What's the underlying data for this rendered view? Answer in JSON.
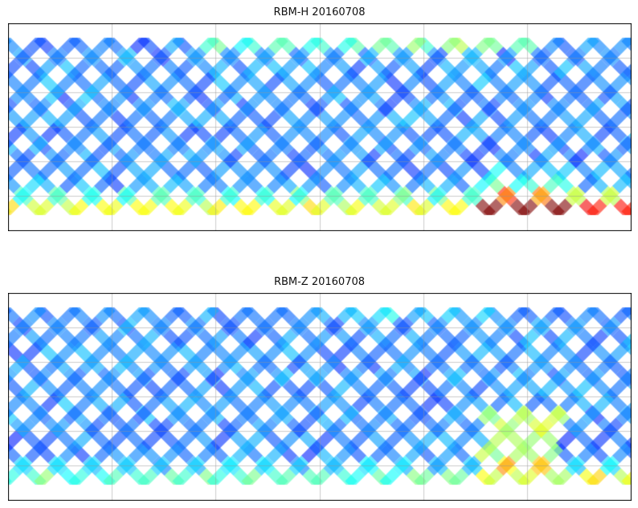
{
  "panels": [
    {
      "title": "RBM-H 20160708",
      "variant": "H"
    },
    {
      "title": "RBM-Z 20160708",
      "variant": "Z"
    }
  ],
  "map": {
    "projection": "PlateCarree",
    "central_longitude": 180,
    "gridline_lon_step_deg": 60,
    "gridline_lat_step_deg": 30,
    "data_lat_range": [
      -65,
      65
    ],
    "colormap": "jet"
  }
}
